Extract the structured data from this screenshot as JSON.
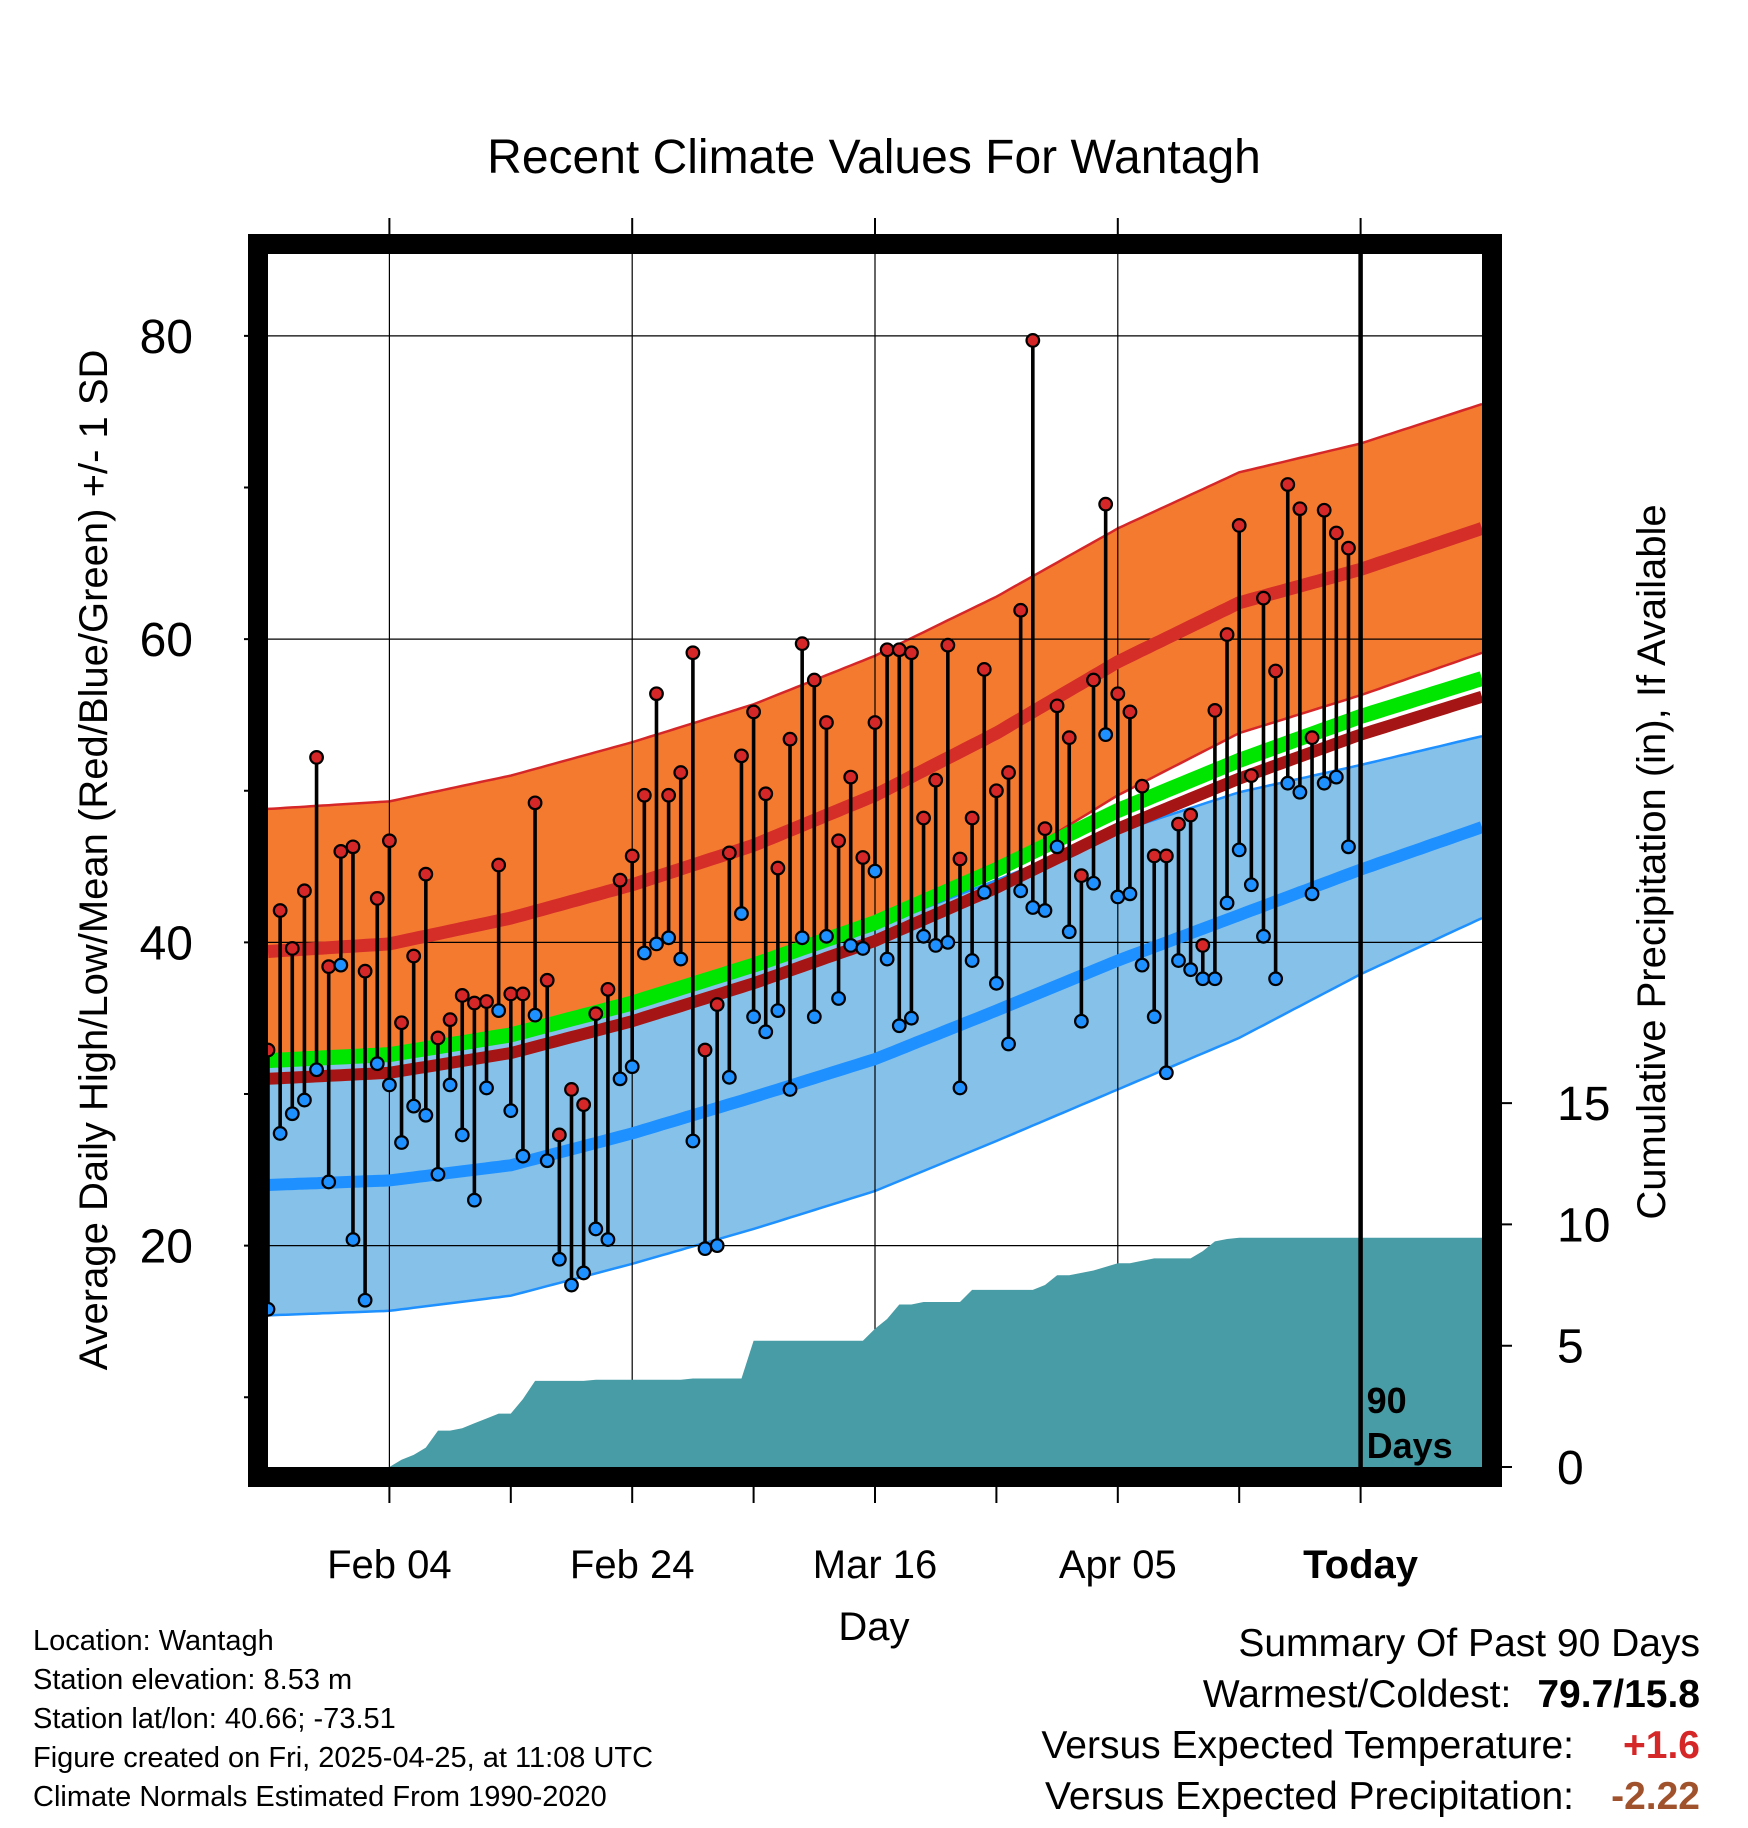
{
  "title": "Recent Climate Values For Wantagh",
  "info": {
    "location": "Location: Wantagh",
    "elevation": "Station elevation: 8.53 m",
    "latlon": "Station lat/lon: 40.66; -73.51",
    "created": "Figure created on Fri, 2025-04-25, at 11:08 UTC",
    "normals": "Climate Normals Estimated From 1990-2020"
  },
  "summary": {
    "heading": "Summary Of Past 90 Days",
    "warmest_label": "Warmest/Coldest:",
    "warmest_value": "79.7/15.8",
    "temp_label": "Versus Expected Temperature:",
    "temp_value": "+1.6",
    "precip_label": "Versus Expected Precipitation:",
    "precip_value": "-2.22"
  },
  "chart_data": {
    "type": "line",
    "title": "Recent Climate Values For Wantagh",
    "xlabel": "Day",
    "ylabel": "Average Daily High/Low/Mean (Red/Blue/Green) +/- 1 SD",
    "y2label": "Cumulative Precipitation (in), If Available",
    "xlim": [
      -10,
      90
    ],
    "ylim": [
      5.4,
      85.4
    ],
    "y_ticks": [
      20,
      40,
      60,
      80
    ],
    "y2lim": [
      0,
      50
    ],
    "y2_ticks": [
      0,
      5,
      10,
      15
    ],
    "x_ticks": [
      {
        "day": 0,
        "label": "Feb 04"
      },
      {
        "day": 20,
        "label": "Feb 24"
      },
      {
        "day": 40,
        "label": "Mar 16"
      },
      {
        "day": 60,
        "label": "Apr 05"
      },
      {
        "day": 80,
        "label": "Today"
      }
    ],
    "today_day": 80,
    "today_annotation": "90 Days",
    "colors": {
      "high_band": "#f47a30",
      "high_edge": "#d62728",
      "high_mean": "#d52d28",
      "low_band": "#85c1e9",
      "low_edge": "#1e90ff",
      "low_mean": "#1e90ff",
      "mean_line": "#00e600",
      "mean_line_dark": "#a51515",
      "high_point": "#d62728",
      "low_point": "#1e90ff",
      "precip": "#479ca5"
    },
    "normals": {
      "days": [
        -10,
        0,
        10,
        20,
        30,
        40,
        50,
        60,
        70,
        80,
        90
      ],
      "high_mean": [
        39.4,
        39.9,
        41.6,
        43.8,
        46.4,
        49.7,
        53.8,
        58.5,
        62.4,
        64.6,
        67.3
      ],
      "high_sd": [
        9.4,
        9.4,
        9.4,
        9.4,
        9.3,
        9.2,
        9.0,
        8.8,
        8.6,
        8.3,
        8.2
      ],
      "low_mean": [
        24.0,
        24.3,
        25.3,
        27.4,
        29.8,
        32.3,
        35.5,
        38.8,
        41.8,
        44.8,
        47.6
      ],
      "low_sd": [
        8.6,
        8.6,
        8.6,
        8.6,
        8.7,
        8.7,
        8.6,
        8.5,
        8.1,
        6.9,
        6.0
      ],
      "daily_mean": [
        32.2,
        32.6,
        33.9,
        36.0,
        38.5,
        41.3,
        44.8,
        48.7,
        52.0,
        54.9,
        57.4
      ]
    },
    "series": [
      {
        "name": "Daily High",
        "values": [
          32.9,
          42.1,
          39.6,
          43.4,
          52.2,
          38.4,
          46.0,
          46.3,
          38.1,
          42.9,
          46.7,
          34.7,
          39.1,
          44.5,
          33.7,
          34.9,
          36.5,
          36.0,
          36.1,
          45.1,
          36.6,
          36.6,
          49.2,
          37.5,
          27.3,
          30.3,
          29.3,
          35.3,
          36.9,
          44.1,
          45.7,
          49.7,
          56.4,
          49.7,
          51.2,
          59.1,
          32.9,
          35.9,
          45.9,
          52.3,
          55.2,
          49.8,
          44.9,
          53.4,
          59.7,
          57.3,
          54.5,
          46.7,
          50.9,
          45.6,
          54.5,
          59.3,
          59.3,
          59.1,
          48.2,
          50.7,
          59.6,
          45.5,
          48.2,
          58.0,
          50.0,
          51.2,
          61.9,
          79.7,
          47.5,
          55.6,
          53.5,
          44.4,
          57.3,
          68.9,
          56.4,
          55.2,
          50.3,
          45.7,
          45.7,
          47.8,
          48.4,
          39.8,
          55.3,
          60.3,
          67.5,
          51.0,
          62.7,
          57.9,
          70.2,
          68.6,
          53.5,
          68.5,
          67.0,
          66.0
        ]
      },
      {
        "name": "Daily Low",
        "values": [
          15.8,
          27.4,
          28.7,
          29.6,
          31.6,
          24.2,
          38.5,
          20.4,
          16.4,
          32.0,
          30.6,
          26.8,
          29.2,
          28.6,
          24.7,
          30.6,
          27.3,
          23.0,
          30.4,
          35.5,
          28.9,
          25.9,
          35.2,
          25.6,
          19.1,
          17.4,
          18.2,
          21.1,
          20.4,
          31.0,
          31.8,
          39.3,
          39.9,
          40.3,
          38.9,
          26.9,
          19.8,
          20.0,
          31.1,
          41.9,
          35.1,
          34.1,
          35.5,
          30.3,
          40.3,
          35.1,
          40.4,
          36.3,
          39.8,
          39.6,
          44.7,
          38.9,
          34.5,
          35.0,
          40.4,
          39.8,
          40.0,
          30.4,
          38.8,
          43.3,
          37.3,
          33.3,
          43.4,
          42.3,
          42.1,
          46.3,
          40.7,
          34.8,
          43.9,
          53.7,
          43.0,
          43.2,
          38.5,
          35.1,
          31.4,
          38.8,
          38.2,
          37.6,
          37.6,
          42.6,
          46.1,
          43.8,
          40.4,
          37.6,
          50.5,
          49.9,
          43.2,
          50.5,
          50.9,
          46.3
        ]
      },
      {
        "name": "Cumulative Precipitation (in)",
        "values": [
          0,
          0,
          0,
          0,
          0,
          0,
          0,
          0,
          0,
          0,
          0,
          0.3,
          0.5,
          0.8,
          1.5,
          1.5,
          1.6,
          1.8,
          2.0,
          2.2,
          2.2,
          2.8,
          3.55,
          3.55,
          3.55,
          3.55,
          3.55,
          3.6,
          3.6,
          3.6,
          3.6,
          3.6,
          3.6,
          3.6,
          3.6,
          3.65,
          3.65,
          3.65,
          3.65,
          3.65,
          5.2,
          5.2,
          5.2,
          5.2,
          5.2,
          5.2,
          5.2,
          5.2,
          5.2,
          5.2,
          5.7,
          6.1,
          6.7,
          6.7,
          6.8,
          6.8,
          6.8,
          6.8,
          7.3,
          7.3,
          7.3,
          7.3,
          7.3,
          7.3,
          7.5,
          7.9,
          7.9,
          8.0,
          8.1,
          8.25,
          8.4,
          8.4,
          8.5,
          8.6,
          8.6,
          8.6,
          8.6,
          8.9,
          9.3,
          9.4,
          9.45,
          9.45,
          9.45,
          9.45,
          9.45,
          9.45,
          9.45,
          9.45,
          9.45,
          9.45
        ]
      }
    ]
  }
}
